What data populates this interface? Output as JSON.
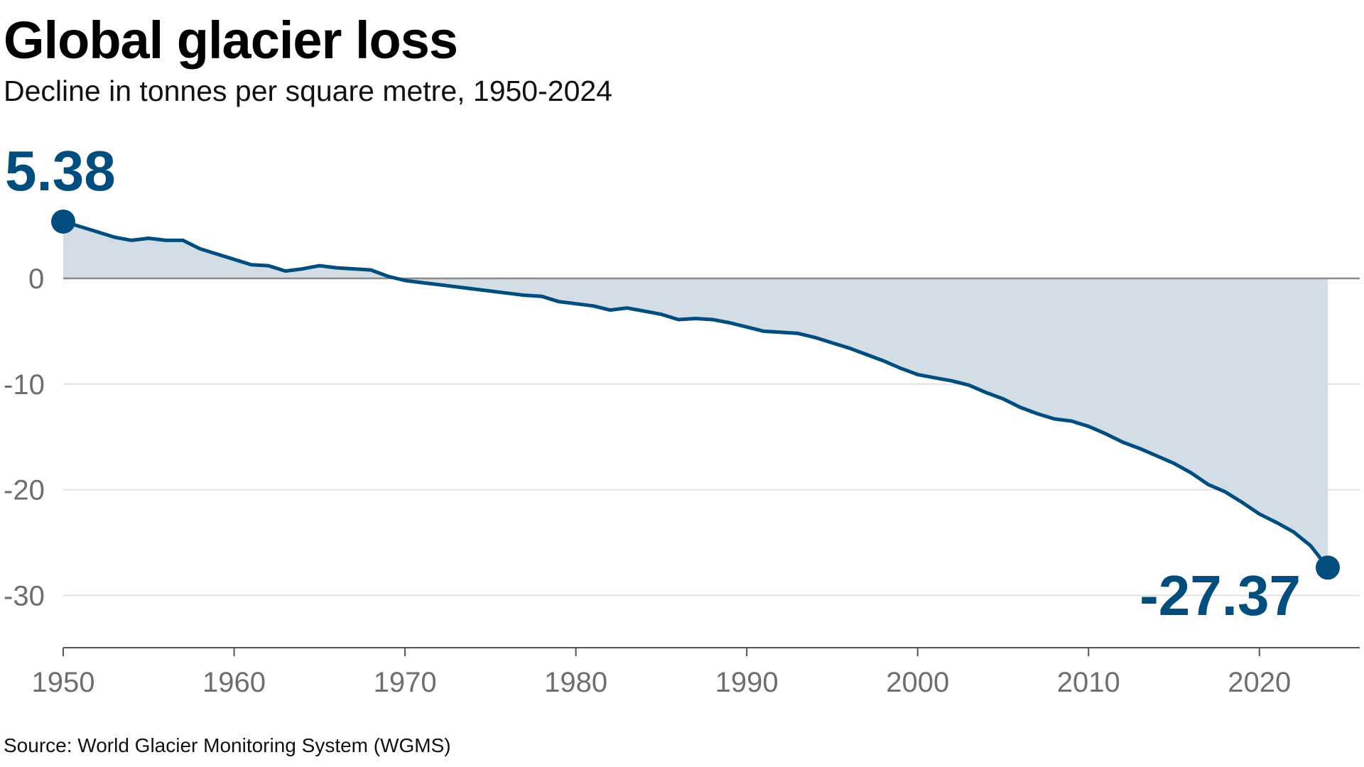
{
  "title": "Global glacier loss",
  "subtitle": "Decline in tonnes per square metre, 1950-2024",
  "source": "Source: World Glacier Monitoring System (WGMS)",
  "colors": {
    "line": "#004d7e",
    "area": "#d3dde6",
    "zero_line": "#8a8a8a",
    "grid": "#e2e2e2",
    "tick_text": "#6e6e6e"
  },
  "chart_data": {
    "type": "area",
    "title": "Global glacier loss",
    "subtitle": "Decline in tonnes per square metre, 1950-2024",
    "xlabel": "",
    "ylabel": "",
    "xlim": [
      1950,
      2024
    ],
    "ylim": [
      -35,
      5.38
    ],
    "grid": true,
    "x_ticks": [
      "1950",
      "1960",
      "1970",
      "1980",
      "1990",
      "2000",
      "2010",
      "2020"
    ],
    "y_ticks": [
      "0",
      "-10",
      "-20",
      "-30"
    ],
    "annotations": {
      "start": "5.38",
      "end": "-27.37"
    },
    "x": [
      1950,
      1951,
      1952,
      1953,
      1954,
      1955,
      1956,
      1957,
      1958,
      1959,
      1960,
      1961,
      1962,
      1963,
      1964,
      1965,
      1966,
      1967,
      1968,
      1969,
      1970,
      1971,
      1972,
      1973,
      1974,
      1975,
      1976,
      1977,
      1978,
      1979,
      1980,
      1981,
      1982,
      1983,
      1984,
      1985,
      1986,
      1987,
      1988,
      1989,
      1990,
      1991,
      1992,
      1993,
      1994,
      1995,
      1996,
      1997,
      1998,
      1999,
      2000,
      2001,
      2002,
      2003,
      2004,
      2005,
      2006,
      2007,
      2008,
      2009,
      2010,
      2011,
      2012,
      2013,
      2014,
      2015,
      2016,
      2017,
      2018,
      2019,
      2020,
      2021,
      2022,
      2023,
      2024
    ],
    "values": [
      5.38,
      4.9,
      4.4,
      3.9,
      3.6,
      3.8,
      3.6,
      3.6,
      2.8,
      2.3,
      1.8,
      1.3,
      1.2,
      0.7,
      0.9,
      1.2,
      1.0,
      0.9,
      0.8,
      0.2,
      -0.2,
      -0.4,
      -0.6,
      -0.8,
      -1.0,
      -1.2,
      -1.4,
      -1.6,
      -1.7,
      -2.2,
      -2.4,
      -2.6,
      -3.0,
      -2.8,
      -3.1,
      -3.4,
      -3.9,
      -3.8,
      -3.9,
      -4.2,
      -4.6,
      -5.0,
      -5.1,
      -5.2,
      -5.6,
      -6.1,
      -6.6,
      -7.2,
      -7.8,
      -8.5,
      -9.1,
      -9.4,
      -9.7,
      -10.1,
      -10.8,
      -11.4,
      -12.2,
      -12.8,
      -13.3,
      -13.5,
      -14.0,
      -14.7,
      -15.5,
      -16.1,
      -16.8,
      -17.5,
      -18.4,
      -19.5,
      -20.2,
      -21.2,
      -22.3,
      -23.1,
      -24.0,
      -25.3,
      -27.37
    ]
  }
}
